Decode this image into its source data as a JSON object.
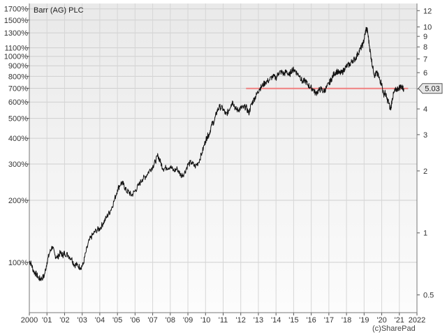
{
  "chart_data": {
    "type": "line",
    "title": "Barr (AG) PLC",
    "credit": "(c)SharePad",
    "x_range": [
      2000,
      2022
    ],
    "x_ticks": [
      {
        "value": 2000,
        "label": "2000"
      },
      {
        "value": 2001,
        "label": "'01"
      },
      {
        "value": 2002,
        "label": "'02"
      },
      {
        "value": 2003,
        "label": "'03"
      },
      {
        "value": 2004,
        "label": "'04"
      },
      {
        "value": 2005,
        "label": "'05"
      },
      {
        "value": 2006,
        "label": "'06"
      },
      {
        "value": 2007,
        "label": "'07"
      },
      {
        "value": 2008,
        "label": "'08"
      },
      {
        "value": 2009,
        "label": "'09"
      },
      {
        "value": 2010,
        "label": "'10"
      },
      {
        "value": 2011,
        "label": "'11"
      },
      {
        "value": 2012,
        "label": "'12"
      },
      {
        "value": 2013,
        "label": "'13"
      },
      {
        "value": 2014,
        "label": "'14"
      },
      {
        "value": 2015,
        "label": "'15"
      },
      {
        "value": 2016,
        "label": "'16"
      },
      {
        "value": 2017,
        "label": "'17"
      },
      {
        "value": 2018,
        "label": "'18"
      },
      {
        "value": 2019,
        "label": "'19"
      },
      {
        "value": 2020,
        "label": "'20"
      },
      {
        "value": 2021,
        "label": "'21"
      },
      {
        "value": 2022,
        "label": "2022"
      }
    ],
    "y_scale": "log",
    "y_right_range": [
      0.41,
      13
    ],
    "y_right_ticks": [
      {
        "value": 0.5,
        "label": "0.5"
      },
      {
        "value": 1,
        "label": "1"
      },
      {
        "value": 2,
        "label": "2"
      },
      {
        "value": 3,
        "label": "3"
      },
      {
        "value": 4,
        "label": "4"
      },
      {
        "value": 5,
        "label": "5"
      },
      {
        "value": 6,
        "label": "6"
      },
      {
        "value": 7,
        "label": "7"
      },
      {
        "value": 8,
        "label": "8"
      },
      {
        "value": 9,
        "label": "9"
      },
      {
        "value": 10,
        "label": "10"
      },
      {
        "value": 12,
        "label": "12"
      }
    ],
    "y_left_base": 0.72,
    "y_left_ticks": [
      {
        "value": 100,
        "label": "100%"
      },
      {
        "value": 200,
        "label": "200%"
      },
      {
        "value": 300,
        "label": "300%"
      },
      {
        "value": 400,
        "label": "400%"
      },
      {
        "value": 500,
        "label": "500%"
      },
      {
        "value": 600,
        "label": "600%"
      },
      {
        "value": 700,
        "label": "700%"
      },
      {
        "value": 800,
        "label": "800%"
      },
      {
        "value": 900,
        "label": "900%"
      },
      {
        "value": 1000,
        "label": "1000%"
      },
      {
        "value": 1100,
        "label": "1100%"
      },
      {
        "value": 1300,
        "label": "1300%"
      },
      {
        "value": 1500,
        "label": "1500%"
      },
      {
        "value": 1700,
        "label": "1700%"
      }
    ],
    "grid": true,
    "reference_line": {
      "y": 5.03,
      "x_start": 2012.3,
      "x_end": 2021.5,
      "color": "#f08080"
    },
    "last_value_badge": {
      "value": 5.03,
      "label": "5.03"
    },
    "series": [
      {
        "color": "#111111",
        "points": [
          [
            2000.0,
            0.73
          ],
          [
            2000.1,
            0.71
          ],
          [
            2000.25,
            0.65
          ],
          [
            2000.4,
            0.63
          ],
          [
            2000.55,
            0.6
          ],
          [
            2000.7,
            0.6
          ],
          [
            2000.85,
            0.62
          ],
          [
            2001.0,
            0.72
          ],
          [
            2001.15,
            0.8
          ],
          [
            2001.3,
            0.86
          ],
          [
            2001.45,
            0.78
          ],
          [
            2001.6,
            0.76
          ],
          [
            2001.75,
            0.8
          ],
          [
            2001.9,
            0.78
          ],
          [
            2002.0,
            0.8
          ],
          [
            2002.2,
            0.78
          ],
          [
            2002.4,
            0.75
          ],
          [
            2002.55,
            0.7
          ],
          [
            2002.7,
            0.7
          ],
          [
            2002.9,
            0.68
          ],
          [
            2003.05,
            0.7
          ],
          [
            2003.2,
            0.8
          ],
          [
            2003.4,
            0.92
          ],
          [
            2003.6,
            0.98
          ],
          [
            2003.8,
            1.03
          ],
          [
            2004.0,
            1.05
          ],
          [
            2004.2,
            1.12
          ],
          [
            2004.4,
            1.2
          ],
          [
            2004.6,
            1.28
          ],
          [
            2004.8,
            1.42
          ],
          [
            2005.0,
            1.62
          ],
          [
            2005.2,
            1.75
          ],
          [
            2005.35,
            1.72
          ],
          [
            2005.5,
            1.6
          ],
          [
            2005.65,
            1.58
          ],
          [
            2005.8,
            1.52
          ],
          [
            2006.0,
            1.6
          ],
          [
            2006.2,
            1.7
          ],
          [
            2006.4,
            1.82
          ],
          [
            2006.6,
            1.88
          ],
          [
            2006.8,
            2.0
          ],
          [
            2007.0,
            2.1
          ],
          [
            2007.15,
            2.22
          ],
          [
            2007.3,
            2.38
          ],
          [
            2007.45,
            2.2
          ],
          [
            2007.6,
            2.05
          ],
          [
            2007.8,
            2.08
          ],
          [
            2008.0,
            2.1
          ],
          [
            2008.2,
            2.0
          ],
          [
            2008.4,
            2.05
          ],
          [
            2008.6,
            1.9
          ],
          [
            2008.8,
            1.95
          ],
          [
            2009.0,
            2.15
          ],
          [
            2009.2,
            2.2
          ],
          [
            2009.4,
            2.1
          ],
          [
            2009.6,
            2.2
          ],
          [
            2009.8,
            2.45
          ],
          [
            2010.0,
            2.8
          ],
          [
            2010.1,
            2.95
          ],
          [
            2010.2,
            3.0
          ],
          [
            2010.35,
            3.35
          ],
          [
            2010.5,
            3.5
          ],
          [
            2010.65,
            3.9
          ],
          [
            2010.8,
            4.1
          ],
          [
            2011.0,
            4.0
          ],
          [
            2011.15,
            3.75
          ],
          [
            2011.3,
            3.9
          ],
          [
            2011.45,
            4.2
          ],
          [
            2011.55,
            4.35
          ],
          [
            2011.7,
            4.0
          ],
          [
            2011.85,
            3.95
          ],
          [
            2012.0,
            4.05
          ],
          [
            2012.15,
            4.05
          ],
          [
            2012.3,
            4.1
          ],
          [
            2012.45,
            3.8
          ],
          [
            2012.6,
            4.2
          ],
          [
            2012.75,
            4.45
          ],
          [
            2012.9,
            4.7
          ],
          [
            2013.05,
            5.0
          ],
          [
            2013.2,
            5.15
          ],
          [
            2013.4,
            5.4
          ],
          [
            2013.6,
            5.5
          ],
          [
            2013.8,
            5.75
          ],
          [
            2014.0,
            5.65
          ],
          [
            2014.15,
            6.0
          ],
          [
            2014.3,
            6.05
          ],
          [
            2014.45,
            5.9
          ],
          [
            2014.6,
            6.1
          ],
          [
            2014.75,
            5.8
          ],
          [
            2014.9,
            6.2
          ],
          [
            2015.05,
            6.2
          ],
          [
            2015.2,
            5.95
          ],
          [
            2015.35,
            5.8
          ],
          [
            2015.5,
            5.4
          ],
          [
            2015.65,
            5.5
          ],
          [
            2015.8,
            5.25
          ],
          [
            2015.95,
            5.1
          ],
          [
            2016.1,
            5.0
          ],
          [
            2016.25,
            4.75
          ],
          [
            2016.4,
            4.9
          ],
          [
            2016.55,
            5.0
          ],
          [
            2016.7,
            4.85
          ],
          [
            2016.85,
            5.05
          ],
          [
            2017.0,
            5.3
          ],
          [
            2017.15,
            5.6
          ],
          [
            2017.3,
            5.95
          ],
          [
            2017.45,
            6.1
          ],
          [
            2017.6,
            5.95
          ],
          [
            2017.75,
            6.0
          ],
          [
            2017.9,
            6.3
          ],
          [
            2018.05,
            6.5
          ],
          [
            2018.2,
            6.6
          ],
          [
            2018.35,
            6.9
          ],
          [
            2018.5,
            7.0
          ],
          [
            2018.65,
            7.45
          ],
          [
            2018.8,
            7.85
          ],
          [
            2018.95,
            8.3
          ],
          [
            2019.05,
            9.2
          ],
          [
            2019.12,
            9.85
          ],
          [
            2019.2,
            9.5
          ],
          [
            2019.3,
            8.1
          ],
          [
            2019.4,
            7.1
          ],
          [
            2019.5,
            6.3
          ],
          [
            2019.6,
            5.8
          ],
          [
            2019.7,
            6.0
          ],
          [
            2019.8,
            5.8
          ],
          [
            2019.9,
            5.5
          ],
          [
            2020.0,
            5.3
          ],
          [
            2020.1,
            4.7
          ],
          [
            2020.2,
            4.8
          ],
          [
            2020.3,
            4.45
          ],
          [
            2020.4,
            4.3
          ],
          [
            2020.5,
            3.95
          ],
          [
            2020.6,
            4.5
          ],
          [
            2020.7,
            4.8
          ],
          [
            2020.8,
            4.95
          ],
          [
            2020.95,
            5.05
          ],
          [
            2021.1,
            5.15
          ],
          [
            2021.2,
            5.05
          ],
          [
            2021.25,
            5.03
          ]
        ]
      }
    ]
  }
}
